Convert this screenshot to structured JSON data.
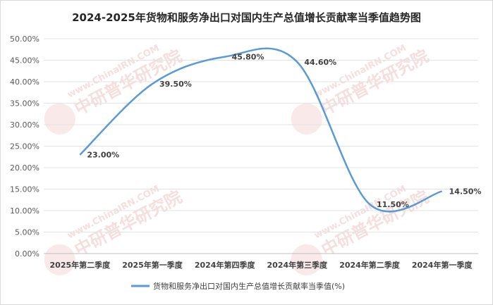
{
  "chart_data": {
    "type": "line",
    "title": "2024-2025年货物和服务净出口对国内生产总值增长贡献率当季值趋势图",
    "categories": [
      "2025年第二季度",
      "2025年第一季度",
      "2024年第四季度",
      "2024年第三季度",
      "2024年第二季度",
      "2024年第一季度"
    ],
    "series": [
      {
        "name": "货物和服务净出口对国内生产总值增长贡献率当季值(%)",
        "values": [
          23.0,
          39.5,
          45.8,
          44.6,
          11.5,
          14.5
        ],
        "color": "#5b9bd5"
      }
    ],
    "data_labels": [
      "23.00%",
      "39.50%",
      "45.80%",
      "44.60%",
      "11.50%",
      "14.50%"
    ],
    "y_ticks": [
      "0.00%",
      "5.00%",
      "10.00%",
      "15.00%",
      "20.00%",
      "25.00%",
      "30.00%",
      "35.00%",
      "40.00%",
      "45.00%",
      "50.00%"
    ],
    "ylim": [
      0,
      50
    ],
    "grid": true,
    "smooth": true,
    "legend_position": "bottom"
  },
  "watermark": {
    "logo_text": "中研普华研究院",
    "url_text": "www.ChinaIRN.COM"
  }
}
